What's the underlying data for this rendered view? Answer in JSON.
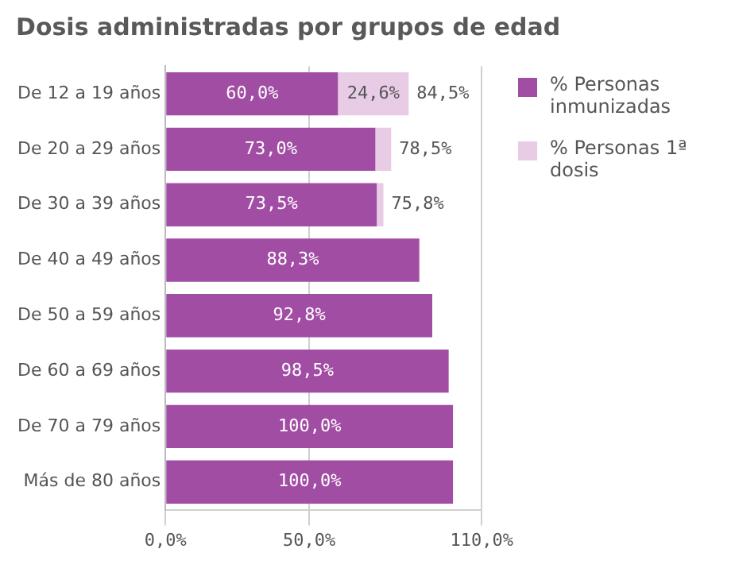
{
  "chart_data": {
    "type": "bar",
    "orientation": "horizontal",
    "stacked": true,
    "title": "Dosis administradas por grupos de edad",
    "categories": [
      "De 12 a 19 años",
      "De 20 a 29 años",
      "De 30 a 39 años",
      "De 40 a 49 años",
      "De 50 a 59 años",
      "De 60 a 69 años",
      "De 70 a 79 años",
      "Más de 80 años"
    ],
    "series": [
      {
        "name": "% Personas inmunizadas",
        "color": "#a24da4",
        "values": [
          60.0,
          73.0,
          73.5,
          88.3,
          92.8,
          98.5,
          100.0,
          100.0
        ],
        "value_labels": [
          "60,0%",
          "73,0%",
          "73,5%",
          "88,3%",
          "92,8%",
          "98,5%",
          "100,0%",
          "100,0%"
        ]
      },
      {
        "name": "% Personas 1ª dosis",
        "color": "#e8cce6",
        "values": [
          24.6,
          5.5,
          2.3,
          null,
          null,
          null,
          null,
          null
        ],
        "value_labels": [
          "24,6%",
          null,
          null,
          null,
          null,
          null,
          null,
          null
        ]
      }
    ],
    "totals": [
      "84,5%",
      "78,5%",
      "75,8%",
      null,
      null,
      null,
      null,
      null
    ],
    "xlim": [
      0,
      110
    ],
    "xticks": [
      {
        "value": 0,
        "label": "0,0%"
      },
      {
        "value": 50,
        "label": "50,0%"
      },
      {
        "value": 110,
        "label": "110,0%"
      }
    ],
    "grid": "x",
    "legend": "right"
  }
}
